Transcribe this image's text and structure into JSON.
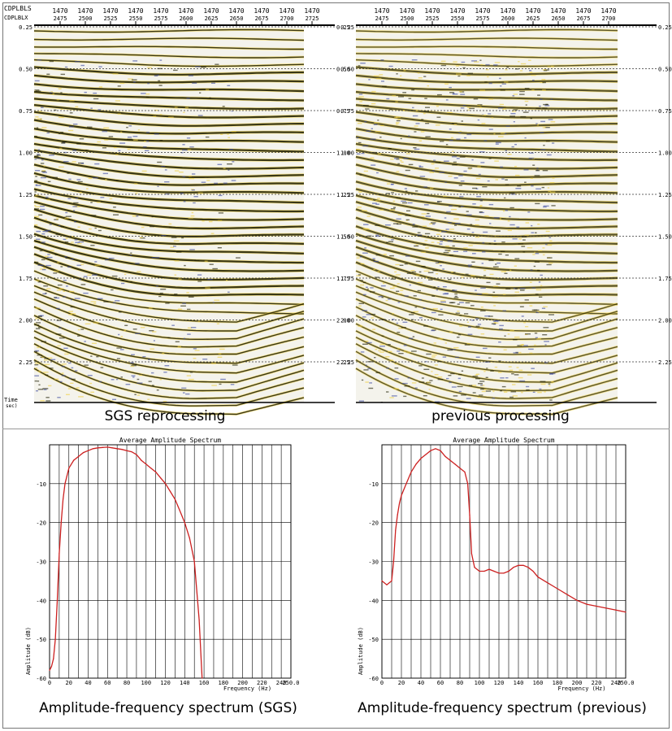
{
  "seismic_header": {
    "row_labels": [
      "CDPLBLS",
      "CDPLBLX"
    ],
    "left_top_ticks": [
      "1470",
      "1470",
      "1470",
      "1470",
      "1470",
      "1470",
      "1470",
      "1470",
      "1470",
      "1470",
      "1470"
    ],
    "left_bottom_ticks": [
      "2475",
      "2500",
      "2525",
      "2550",
      "2575",
      "2600",
      "2625",
      "2650",
      "2675",
      "2700",
      "2725"
    ],
    "right_top_ticks": [
      "1470",
      "1470",
      "1470",
      "1470",
      "1470",
      "1470",
      "1470",
      "1470",
      "1470",
      "1470"
    ],
    "right_bottom_ticks": [
      "2475",
      "2500",
      "2525",
      "2550",
      "2575",
      "2600",
      "2625",
      "2650",
      "2675",
      "2700"
    ]
  },
  "time_axis": {
    "labels": [
      "0.25",
      "0.50",
      "0.75",
      "1.00",
      "1.25",
      "1.50",
      "1.75",
      "2.00",
      "2.25"
    ],
    "title_line1": "Time",
    "title_line2": "sec)"
  },
  "captions": {
    "seismic_left": "SGS reprocessing",
    "seismic_right": "previous processing",
    "spectrum_left": "Amplitude-frequency spectrum (SGS)",
    "spectrum_right": "Amplitude-frequency spectrum (previous)"
  },
  "colors": {
    "trace_positive": "#1a1a00",
    "trace_fill": "#f0d040",
    "trace_negative": "#3a4aa0",
    "spectrum_line": "#cc2020",
    "grid": "#000000"
  },
  "chart_data": [
    {
      "type": "line",
      "title": "Average Amplitude Spectrum",
      "xlabel": "Frequency (Hz)",
      "ylabel": "Amplitude (dB)",
      "xlim": [
        0,
        250
      ],
      "ylim": [
        -60,
        0
      ],
      "x_ticks": [
        "0",
        "20",
        "40",
        "60",
        "80",
        "100",
        "120",
        "140",
        "160",
        "180",
        "200",
        "220",
        "240",
        "250.0"
      ],
      "y_ticks": [
        "-10",
        "-20",
        "-30",
        "-40",
        "-50",
        "-60"
      ],
      "grid": true,
      "series": [
        {
          "x": [
            0,
            2,
            4,
            6,
            8,
            10,
            12,
            14,
            16,
            18,
            20,
            25,
            30,
            35,
            40,
            45,
            50,
            55,
            60,
            65,
            70,
            75,
            80,
            85,
            90,
            95,
            100,
            105,
            110,
            115,
            120,
            125,
            130,
            135,
            140,
            145,
            150,
            155,
            158
          ],
          "y": [
            -58,
            -57,
            -55,
            -50,
            -40,
            -28,
            -20,
            -14,
            -10,
            -8,
            -6,
            -4,
            -3,
            -2,
            -1.5,
            -1,
            -0.8,
            -0.7,
            -0.6,
            -0.8,
            -1,
            -1.2,
            -1.5,
            -1.8,
            -2.5,
            -4,
            -5,
            -6,
            -7,
            -8.5,
            -10,
            -12,
            -14,
            -17,
            -20,
            -24,
            -30,
            -45,
            -60
          ]
        }
      ]
    },
    {
      "type": "line",
      "title": "Average Amplitude Spectrum",
      "xlabel": "Frequency (Hz)",
      "ylabel": "Amplitude (dB)",
      "xlim": [
        0,
        250
      ],
      "ylim": [
        -60,
        0
      ],
      "x_ticks": [
        "0",
        "20",
        "40",
        "60",
        "80",
        "100",
        "120",
        "140",
        "160",
        "180",
        "200",
        "220",
        "240",
        "250.0"
      ],
      "y_ticks": [
        "-10",
        "-20",
        "-30",
        "-40",
        "-50",
        "-60"
      ],
      "grid": true,
      "series": [
        {
          "x": [
            0,
            5,
            10,
            12,
            14,
            16,
            18,
            20,
            25,
            30,
            35,
            40,
            45,
            50,
            55,
            60,
            65,
            70,
            75,
            80,
            85,
            88,
            90,
            92,
            95,
            100,
            105,
            110,
            115,
            120,
            125,
            130,
            135,
            140,
            145,
            150,
            155,
            160,
            170,
            180,
            190,
            200,
            210,
            220,
            230,
            240,
            250
          ],
          "y": [
            -35,
            -36,
            -35,
            -30,
            -22,
            -18,
            -15,
            -13,
            -10,
            -7,
            -5,
            -3.5,
            -2.5,
            -1.5,
            -1,
            -1.5,
            -3,
            -4,
            -5,
            -6,
            -7,
            -10,
            -18,
            -28,
            -31.5,
            -32.5,
            -32.5,
            -32,
            -32.5,
            -33,
            -33,
            -32.5,
            -31.5,
            -31,
            -31,
            -31.5,
            -32.5,
            -34,
            -35.5,
            -37,
            -38.5,
            -40,
            -41,
            -41.5,
            -42,
            -42.5,
            -43
          ]
        }
      ]
    }
  ]
}
